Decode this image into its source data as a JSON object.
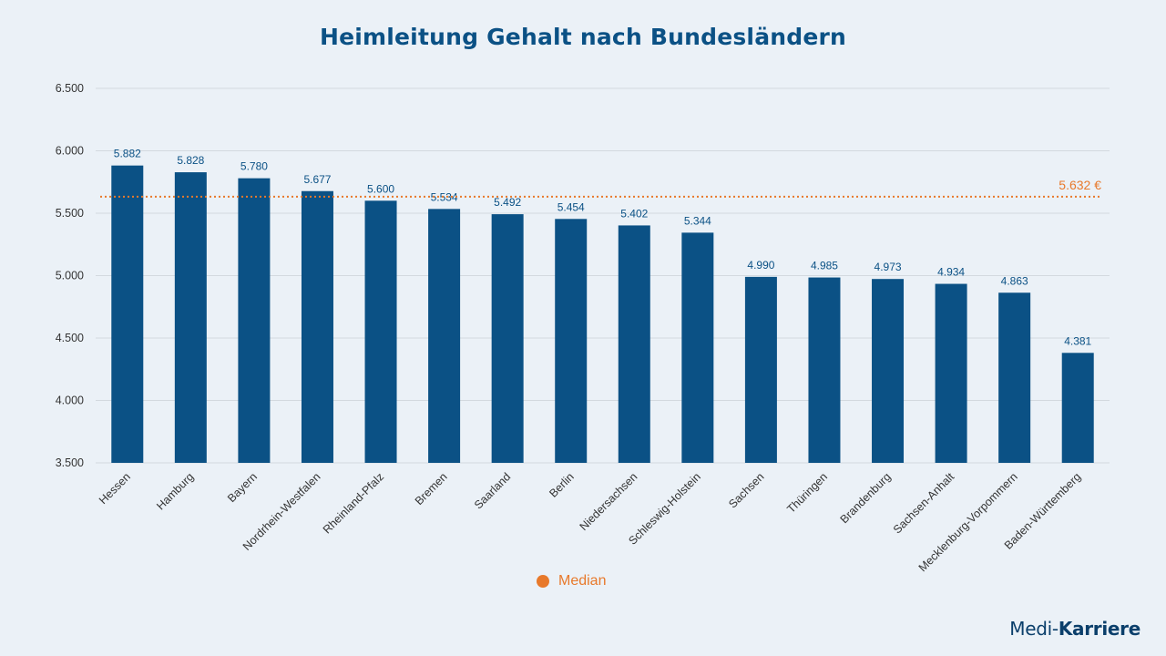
{
  "title": "Heimleitung Gehalt nach Bundesländern",
  "chart_data": {
    "type": "bar",
    "title": "Heimleitung Gehalt nach Bundesländern",
    "xlabel": "",
    "ylabel": "",
    "ylim": [
      3500,
      6500
    ],
    "yticks": [
      3500,
      4000,
      4500,
      5000,
      5500,
      6000,
      6500
    ],
    "ytick_labels": [
      "3.500",
      "4.000",
      "4.500",
      "5.000",
      "5.500",
      "6.000",
      "6.500"
    ],
    "categories": [
      "Hessen",
      "Hamburg",
      "Bayern",
      "Nordrhein-Westfalen",
      "Rheinland-Pfalz",
      "Bremen",
      "Saarland",
      "Berlin",
      "Niedersachsen",
      "Schleswig-Holstein",
      "Sachsen",
      "Thüringen",
      "Brandenburg",
      "Sachsen-Anhalt",
      "Mecklenburg-Vorpommern",
      "Baden-Württemberg"
    ],
    "values": [
      5882,
      5828,
      5780,
      5677,
      5600,
      5534,
      5492,
      5454,
      5402,
      5344,
      4990,
      4985,
      4973,
      4934,
      4863,
      4381
    ],
    "value_labels": [
      "5.882",
      "5.828",
      "5.780",
      "5.677",
      "5.600",
      "5.534",
      "5.492",
      "5.454",
      "5.402",
      "5.344",
      "4.990",
      "4.985",
      "4.973",
      "4.934",
      "4.863",
      "4.381"
    ],
    "median": {
      "name": "Median",
      "value": 5632,
      "label": "5.632 €"
    },
    "grid": true,
    "legend_position": "bottom-center"
  },
  "colors": {
    "bar": "#0b5185",
    "median": "#e8792b",
    "title": "#0b5185",
    "grid": "#d3d9df",
    "axis_text": "#333333"
  },
  "legend": {
    "median_label": "Median"
  },
  "logo": {
    "part1": "Medi-",
    "part2": "Karriere"
  }
}
